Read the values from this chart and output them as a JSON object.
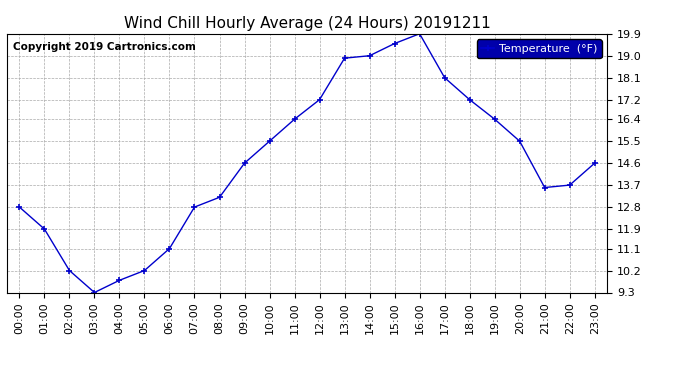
{
  "title": "Wind Chill Hourly Average (24 Hours) 20191211",
  "copyright": "Copyright 2019 Cartronics.com",
  "legend_label": "Temperature  (°F)",
  "hours": [
    "00:00",
    "01:00",
    "02:00",
    "03:00",
    "04:00",
    "05:00",
    "06:00",
    "07:00",
    "08:00",
    "09:00",
    "10:00",
    "11:00",
    "12:00",
    "13:00",
    "14:00",
    "15:00",
    "16:00",
    "17:00",
    "18:00",
    "19:00",
    "20:00",
    "21:00",
    "22:00",
    "23:00"
  ],
  "values": [
    12.8,
    11.9,
    10.2,
    9.3,
    9.8,
    10.2,
    11.1,
    12.8,
    13.2,
    14.6,
    15.5,
    16.4,
    17.2,
    18.9,
    19.0,
    19.5,
    19.9,
    18.1,
    17.2,
    16.4,
    15.5,
    13.6,
    13.7,
    14.6
  ],
  "ylim": [
    9.3,
    19.9
  ],
  "yticks": [
    9.3,
    10.2,
    11.1,
    11.9,
    12.8,
    13.7,
    14.6,
    15.5,
    16.4,
    17.2,
    18.1,
    19.0,
    19.9
  ],
  "line_color": "#0000cc",
  "marker": "+",
  "bg_color": "#ffffff",
  "grid_color": "#aaaaaa",
  "legend_bg": "#0000aa",
  "legend_fg": "#ffffff",
  "title_fontsize": 11,
  "tick_fontsize": 8,
  "copyright_fontsize": 7.5
}
